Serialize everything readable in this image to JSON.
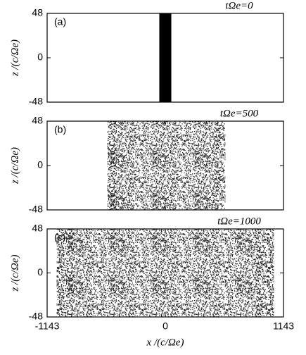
{
  "chart_data": [
    {
      "type": "region",
      "label": "(a)",
      "annotation": "tΩe=0",
      "ylabel": "z /(c/Ωe)",
      "xlim": [
        -1143,
        1143
      ],
      "xticks": [
        -1143,
        0,
        1143
      ],
      "ylim": [
        -48,
        48
      ],
      "yticks": [
        -48,
        0,
        48
      ],
      "x_extent": [
        -58,
        58
      ],
      "fill": "solid",
      "color": "#000000"
    },
    {
      "type": "region",
      "label": "(b)",
      "annotation": "tΩe=500",
      "ylabel": "z /(c/Ωe)",
      "xlim": [
        -1143,
        1143
      ],
      "xticks": [
        -1143,
        0,
        1143
      ],
      "ylim": [
        -48,
        48
      ],
      "yticks": [
        -48,
        0,
        48
      ],
      "x_extent": [
        -560,
        580
      ],
      "fill": "speckle",
      "color": "#000000"
    },
    {
      "type": "region",
      "label": "(c)",
      "annotation": "tΩe=1000",
      "ylabel": "z /(c/Ωe)",
      "xlabel": "x /(c/Ωe)",
      "xlim": [
        -1143,
        1143
      ],
      "xticks": [
        -1143,
        0,
        1143
      ],
      "ylim": [
        -48,
        48
      ],
      "yticks": [
        -48,
        0,
        48
      ],
      "x_extent": [
        -1050,
        1050
      ],
      "fill": "speckle",
      "color": "#000000"
    }
  ]
}
